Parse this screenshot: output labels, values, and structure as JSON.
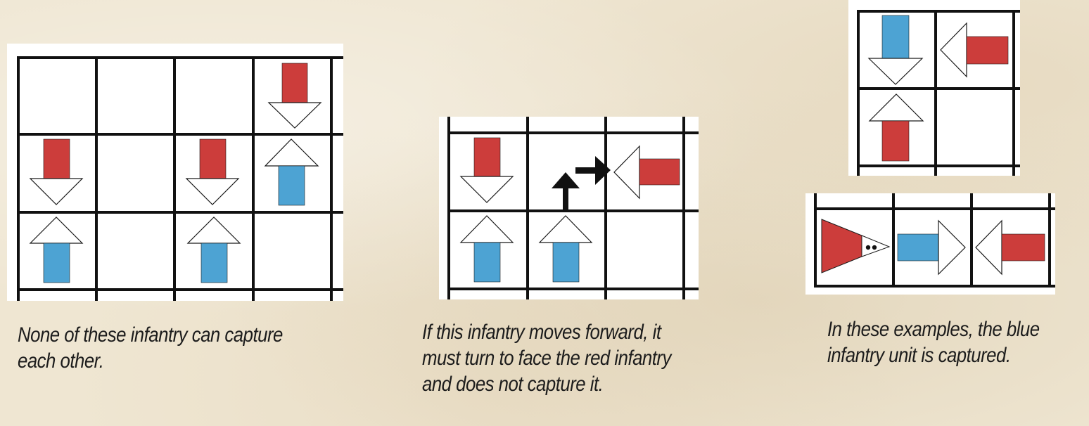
{
  "colors": {
    "background": "#efe6d2",
    "grid_line": "#111111",
    "board": "#ffffff",
    "red_unit": "#cc3d3b",
    "blue_unit": "#4da3d3",
    "arrow_outline": "#1a1a1a",
    "move_arrow": "#111111"
  },
  "figures": [
    {
      "caption": "None of these infantry can capture\neach other.",
      "units": [
        {
          "color": "red",
          "facing": "down",
          "cell": [
            3,
            0
          ]
        },
        {
          "color": "red",
          "facing": "down",
          "cell": [
            0,
            1
          ]
        },
        {
          "color": "red",
          "facing": "down",
          "cell": [
            2,
            1
          ]
        },
        {
          "color": "blue",
          "facing": "up",
          "cell": [
            3,
            1
          ]
        },
        {
          "color": "blue",
          "facing": "up",
          "cell": [
            0,
            2
          ]
        },
        {
          "color": "blue",
          "facing": "up",
          "cell": [
            2,
            2
          ]
        }
      ]
    },
    {
      "caption": "If this infantry moves forward, it\nmust turn to face the red infantry\nand does not capture it.",
      "units": [
        {
          "color": "red",
          "facing": "down",
          "cell": [
            0,
            0
          ]
        },
        {
          "color": "red",
          "facing": "left",
          "cell": [
            2,
            0
          ]
        },
        {
          "color": "blue",
          "facing": "up",
          "cell": [
            0,
            1
          ]
        },
        {
          "color": "blue",
          "facing": "up",
          "cell": [
            1,
            1
          ]
        }
      ],
      "move_path": [
        "up",
        "right"
      ]
    },
    {
      "caption": "In these examples, the blue\ninfantry unit is captured.",
      "examples": [
        {
          "units": [
            {
              "color": "blue",
              "facing": "down",
              "cell": [
                0,
                0
              ]
            },
            {
              "color": "red",
              "facing": "left",
              "cell": [
                1,
                0
              ]
            },
            {
              "color": "red",
              "facing": "up",
              "cell": [
                0,
                1
              ]
            }
          ]
        },
        {
          "units": [
            {
              "color": "red",
              "type": "artillery",
              "facing": "right",
              "cell": [
                0,
                0
              ]
            },
            {
              "color": "blue",
              "facing": "right",
              "cell": [
                1,
                0
              ]
            },
            {
              "color": "red",
              "facing": "left",
              "cell": [
                2,
                0
              ]
            }
          ]
        }
      ]
    }
  ]
}
